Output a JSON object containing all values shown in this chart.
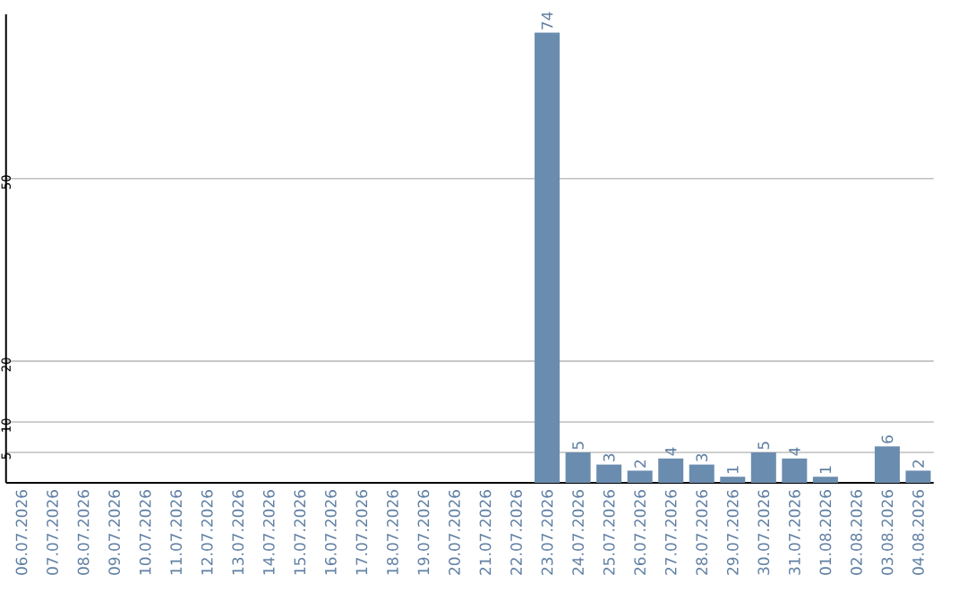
{
  "chart_data": {
    "type": "bar",
    "categories": [
      "06.07.2026",
      "07.07.2026",
      "08.07.2026",
      "09.07.2026",
      "10.07.2026",
      "11.07.2026",
      "12.07.2026",
      "13.07.2026",
      "14.07.2026",
      "15.07.2026",
      "16.07.2026",
      "17.07.2026",
      "18.07.2026",
      "19.07.2026",
      "20.07.2026",
      "21.07.2026",
      "22.07.2026",
      "23.07.2026",
      "24.07.2026",
      "25.07.2026",
      "26.07.2026",
      "27.07.2026",
      "28.07.2026",
      "29.07.2026",
      "30.07.2026",
      "31.07.2026",
      "01.08.2026",
      "02.08.2026",
      "03.08.2026",
      "04.08.2026"
    ],
    "values": [
      0,
      0,
      0,
      0,
      0,
      0,
      0,
      0,
      0,
      0,
      0,
      0,
      0,
      0,
      0,
      0,
      0,
      74,
      5,
      3,
      2,
      4,
      3,
      1,
      5,
      4,
      1,
      0,
      6,
      2
    ],
    "value_labels": [
      null,
      null,
      null,
      null,
      null,
      null,
      null,
      null,
      null,
      null,
      null,
      null,
      null,
      null,
      null,
      null,
      null,
      "74",
      "5",
      "3",
      "2",
      "4",
      "3",
      "1",
      "5",
      "4",
      "1",
      null,
      "6",
      "2"
    ],
    "color": "#6a8caf",
    "ylim": [
      0,
      77
    ],
    "yticks": [
      5,
      10,
      20,
      50
    ],
    "grid": "y"
  }
}
